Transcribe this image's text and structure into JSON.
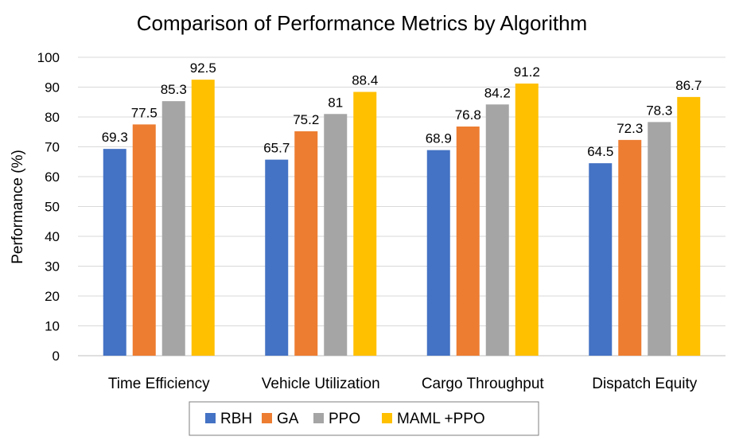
{
  "chart_data": {
    "type": "bar",
    "title": "Comparison of Performance Metrics by Algorithm",
    "xlabel": "",
    "ylabel": "Performance (%)",
    "ylim": [
      0,
      100
    ],
    "yticks": [
      0,
      10,
      20,
      30,
      40,
      50,
      60,
      70,
      80,
      90,
      100
    ],
    "yticks_text": [
      "0",
      "10",
      "20",
      "30",
      "40",
      "50",
      "60",
      "70",
      "80",
      "90",
      "100"
    ],
    "grid": true,
    "legend_position": "bottom",
    "categories": [
      "Time Efficiency",
      "Vehicle Utilization",
      "Cargo Throughput",
      "Dispatch Equity"
    ],
    "series": [
      {
        "name": "RBH",
        "color": "#4472c4",
        "values": [
          69.3,
          65.7,
          68.9,
          64.5
        ],
        "labels": [
          "69.3",
          "65.7",
          "68.9",
          "64.5"
        ]
      },
      {
        "name": "GA",
        "color": "#ed7d31",
        "values": [
          77.5,
          75.2,
          76.8,
          72.3
        ],
        "labels": [
          "77.5",
          "75.2",
          "76.8",
          "72.3"
        ]
      },
      {
        "name": "PPO",
        "color": "#a5a5a5",
        "values": [
          85.3,
          81,
          84.2,
          78.3
        ],
        "labels": [
          "85.3",
          "81",
          "84.2",
          "78.3"
        ]
      },
      {
        "name": "MAML +PPO",
        "color": "#ffc000",
        "values": [
          92.5,
          88.4,
          91.2,
          86.7
        ],
        "labels": [
          "92.5",
          "88.4",
          "91.2",
          "86.7"
        ]
      }
    ]
  }
}
